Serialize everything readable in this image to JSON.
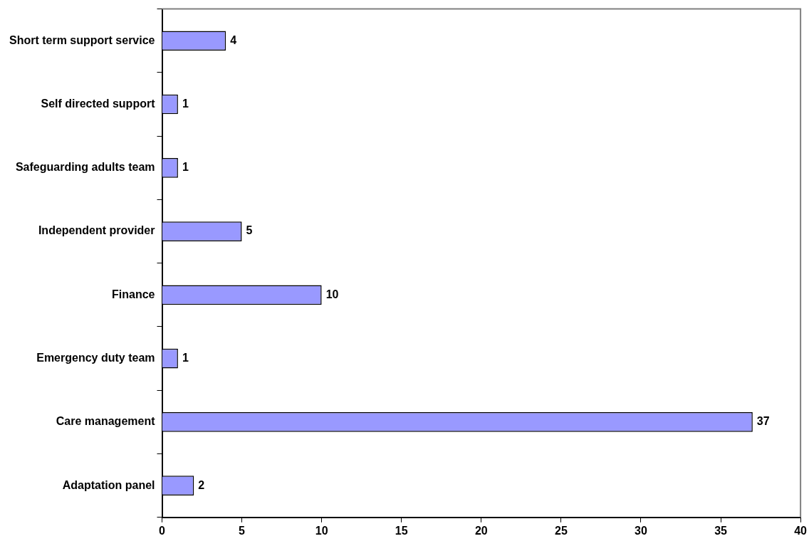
{
  "chart_data": {
    "type": "bar",
    "orientation": "horizontal",
    "categories": [
      "Short term support service",
      "Self directed support",
      "Safeguarding adults team",
      "Independent provider",
      "Finance",
      "Emergency duty team",
      "Care management",
      "Adaptation panel"
    ],
    "values": [
      4,
      1,
      1,
      5,
      10,
      1,
      37,
      2
    ],
    "color": "#9999ff",
    "xlim": [
      0,
      40
    ],
    "xticks": [
      0,
      5,
      10,
      15,
      20,
      25,
      30,
      35,
      40
    ],
    "grid": false,
    "legend": false,
    "data_labels": true
  }
}
